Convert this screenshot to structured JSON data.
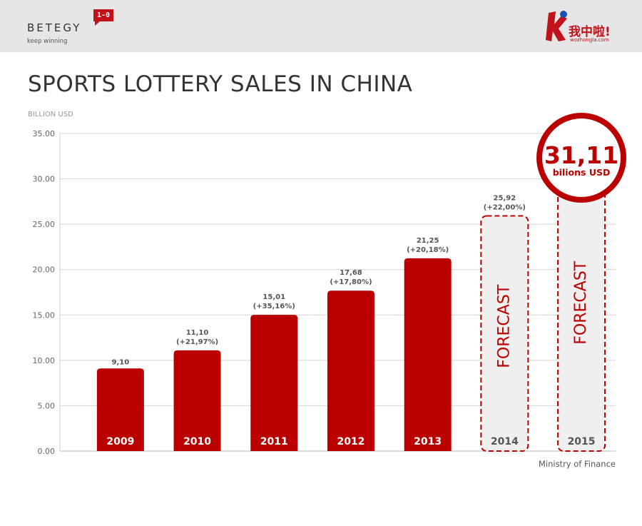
{
  "header": {
    "brand_name": "BETEGY",
    "brand_tagline": "keep winning",
    "brand_badge": "1-0",
    "partner_name": "我中啦!",
    "partner_url": "wozhongla.com",
    "colors": {
      "bar": "#bb0000",
      "header_bg": "#e6e6e6",
      "text": "#333333"
    }
  },
  "source": "Ministry of Finance",
  "chart_data": {
    "type": "bar",
    "title": "SPORTS LOTTERY SALES IN CHINA",
    "ylabel": "BILLION USD",
    "xlabel": "",
    "ylim": [
      0,
      35
    ],
    "yticks": [
      "0.00",
      "5.00",
      "10.00",
      "15.00",
      "20.00",
      "25.00",
      "30.00",
      "35.00"
    ],
    "grid": true,
    "categories": [
      "2009",
      "2010",
      "2011",
      "2012",
      "2013",
      "2014",
      "2015"
    ],
    "values": [
      9.1,
      11.1,
      15.01,
      17.68,
      21.25,
      25.92,
      31.11
    ],
    "value_labels": [
      "9,10",
      "11,10",
      "15,01",
      "17,68",
      "21,25",
      "25,92",
      ""
    ],
    "growth_labels": [
      "",
      "(+21,97%)",
      "(+35,16%)",
      "(+17,80%)",
      "(+20,18%)",
      "(+22,00%)",
      ""
    ],
    "forecast": [
      false,
      false,
      false,
      false,
      false,
      true,
      true
    ],
    "forecast_label": "FORECAST",
    "highlight": {
      "value": "31,11",
      "unit": "bilions USD"
    }
  }
}
